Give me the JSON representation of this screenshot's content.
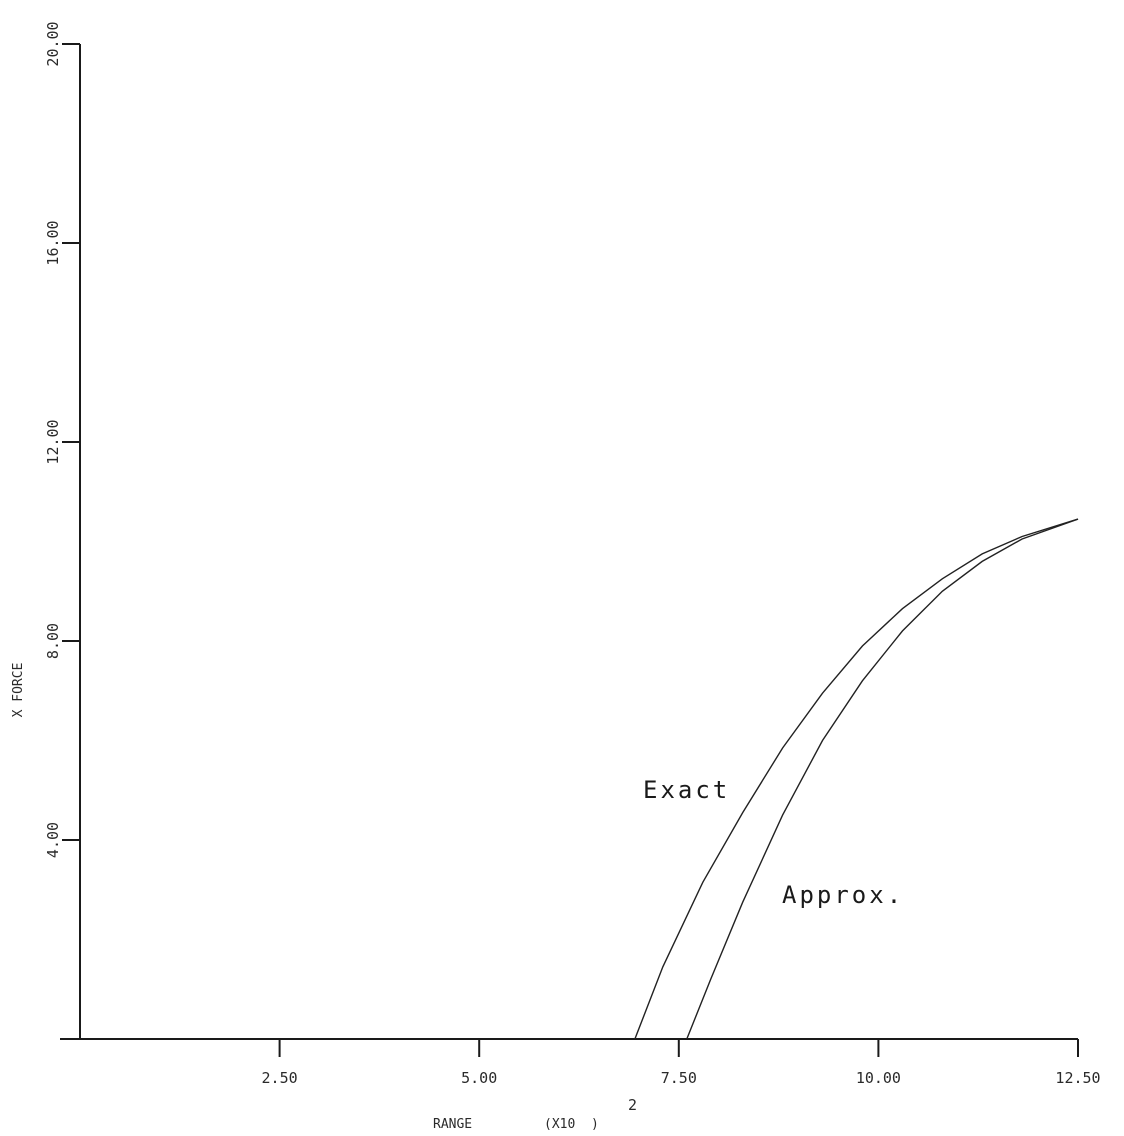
{
  "chart_data": {
    "type": "line",
    "title": "",
    "xlabel": "RANGE",
    "xlabel_multiplier": "(X10  )",
    "xlabel_exponent": "2",
    "ylabel": "X FORCE",
    "xlim": [
      0,
      12.5
    ],
    "ylim": [
      0,
      20
    ],
    "x_tick_values": [
      2.5,
      5.0,
      7.5,
      10.0,
      12.5
    ],
    "x_tick_labels": [
      "2.50",
      "5.00",
      "7.50",
      "10.00",
      "12.50"
    ],
    "y_tick_values": [
      4,
      8,
      12,
      16,
      20
    ],
    "y_tick_labels": [
      "4.00",
      "8.00",
      "12.00",
      "16.00",
      "20.00"
    ],
    "grid": false,
    "legend": "none",
    "annotations": [
      "Exact",
      "Approx."
    ],
    "series": [
      {
        "name": "Exact",
        "x": [
          6.95,
          7.3,
          7.8,
          8.3,
          8.8,
          9.3,
          9.8,
          10.3,
          10.8,
          11.3,
          11.8,
          12.5
        ],
        "y": [
          0.0,
          1.45,
          3.15,
          4.55,
          5.85,
          6.95,
          7.9,
          8.65,
          9.25,
          9.75,
          10.1,
          10.45
        ]
      },
      {
        "name": "Approx.",
        "x": [
          7.6,
          7.9,
          8.3,
          8.8,
          9.3,
          9.8,
          10.3,
          10.8,
          11.3,
          11.8,
          12.5
        ],
        "y": [
          0.0,
          1.2,
          2.75,
          4.5,
          6.0,
          7.2,
          8.2,
          9.0,
          9.6,
          10.05,
          10.45
        ]
      }
    ]
  }
}
